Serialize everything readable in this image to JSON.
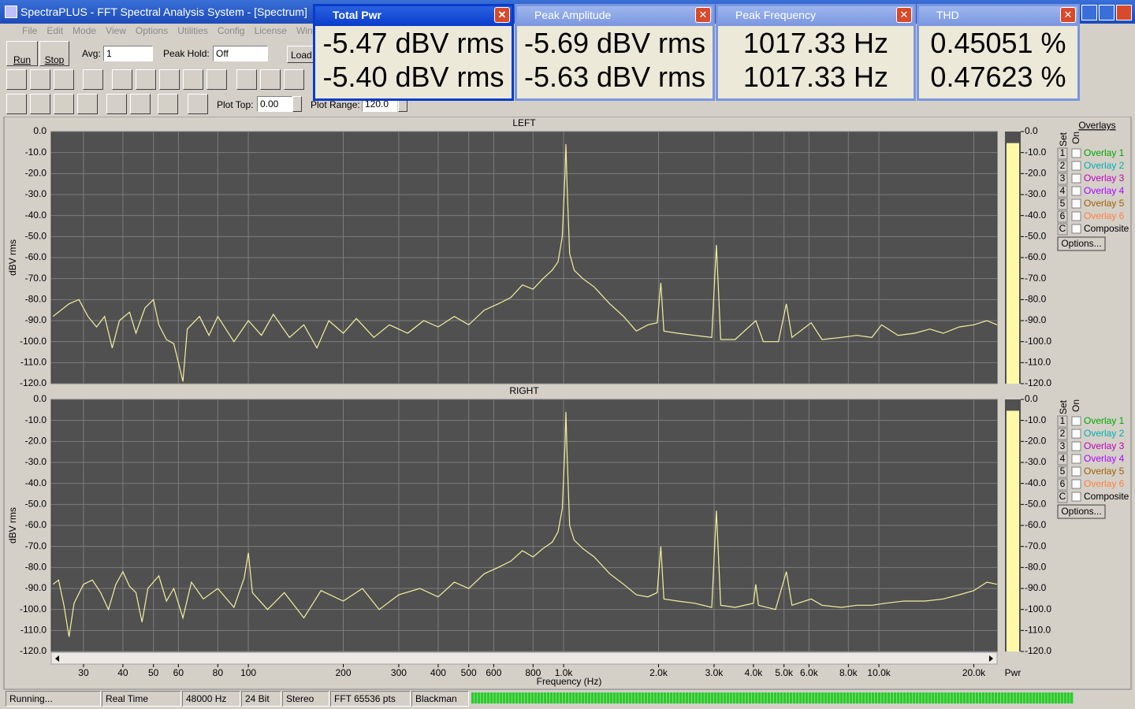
{
  "window_title": "SpectraPLUS - FFT Spectral Analysis System - [Spectrum]",
  "menu": [
    "File",
    "Edit",
    "Mode",
    "View",
    "Options",
    "Utilities",
    "Config",
    "License",
    "Window"
  ],
  "toolbar": {
    "run": "Run",
    "stop": "Stop",
    "avg_label": "Avg:",
    "avg_value": "1",
    "peak_hold_label": "Peak Hold:",
    "peak_hold_value": "Off",
    "load": "Load",
    "plot_top_label": "Plot Top:",
    "plot_top_value": "0.00",
    "plot_range_label": "Plot Range:",
    "plot_range_value": "120.0"
  },
  "meters": [
    {
      "title": "Total Pwr",
      "lines": [
        "-5.47 dBV rms",
        "-5.40 dBV rms"
      ]
    },
    {
      "title": "Peak Amplitude",
      "lines": [
        "-5.69 dBV rms",
        "-5.63 dBV rms"
      ]
    },
    {
      "title": "Peak Frequency",
      "lines": [
        "1017.33 Hz",
        "1017.33 Hz"
      ]
    },
    {
      "title": "THD",
      "lines": [
        "0.45051 %",
        "0.47623 %"
      ]
    }
  ],
  "overlays": {
    "title": "Overlays",
    "set_label": "Set",
    "on_label": "On",
    "items": [
      {
        "set": "1",
        "name": "Overlay 1",
        "color": "#00a800"
      },
      {
        "set": "2",
        "name": "Overlay 2",
        "color": "#00b0b0"
      },
      {
        "set": "3",
        "name": "Overlay 3",
        "color": "#c000c0"
      },
      {
        "set": "4",
        "name": "Overlay 4",
        "color": "#b000ff"
      },
      {
        "set": "5",
        "name": "Overlay 5",
        "color": "#a06000"
      },
      {
        "set": "6",
        "name": "Overlay 6",
        "color": "#ff7f40"
      }
    ],
    "composite_set": "C",
    "composite": "Composite",
    "options": "Options..."
  },
  "power_label": "Pwr",
  "status": [
    "Running...",
    "Real Time",
    "48000 Hz",
    "24 Bit",
    "Stereo",
    "FFT 65536 pts",
    "Blackman"
  ],
  "chart_data": [
    {
      "type": "line",
      "title": "LEFT",
      "y_label": "dBV rms",
      "color": "#f4f0a0",
      "log_x": true,
      "grid": true,
      "power": -5.5,
      "xlim": [
        23.7,
        23700
      ],
      "ylim": [
        -120,
        0
      ],
      "yticks": [
        {
          "value": 0,
          "label": "0.0"
        },
        {
          "value": -10,
          "label": "-10.0"
        },
        {
          "value": -20,
          "label": "-20.0"
        },
        {
          "value": -30,
          "label": "-30.0"
        },
        {
          "value": -40,
          "label": "-40.0"
        },
        {
          "value": -50,
          "label": "-50.0"
        },
        {
          "value": -60,
          "label": "-60.0"
        },
        {
          "value": -70,
          "label": "-70.0"
        },
        {
          "value": -80,
          "label": "-80.0"
        },
        {
          "value": -90,
          "label": "-90.0"
        },
        {
          "value": -100,
          "label": "-100.0"
        },
        {
          "value": -110,
          "label": "-110.0"
        },
        {
          "value": -120,
          "label": "-120.0"
        }
      ],
      "x": [
        24,
        27,
        29,
        31,
        33,
        35,
        37,
        39,
        42,
        44,
        47,
        50,
        52,
        55,
        58,
        60,
        62,
        64,
        70,
        75,
        80,
        90,
        100,
        110,
        120,
        135,
        150,
        165,
        180,
        200,
        220,
        250,
        280,
        320,
        360,
        400,
        450,
        500,
        560,
        620,
        680,
        740,
        800,
        860,
        920,
        960,
        990,
        1010,
        1017,
        1025,
        1045,
        1080,
        1150,
        1250,
        1400,
        1550,
        1700,
        1850,
        1980,
        2034,
        2080,
        2300,
        2600,
        2950,
        3052,
        3150,
        3500,
        4069,
        4300,
        4800,
        5086,
        5300,
        6100,
        6600,
        7600,
        8500,
        9500,
        10200,
        11500,
        13000,
        14500,
        16000,
        18000,
        20000,
        22000,
        23700
      ],
      "values": [
        -88,
        -82,
        -80,
        -88,
        -93,
        -88,
        -103,
        -90,
        -86,
        -96,
        -84,
        -80,
        -92,
        -99,
        -101,
        -110,
        -119,
        -94,
        -88,
        -97,
        -88,
        -100,
        -90,
        -97,
        -87,
        -98,
        -92,
        -103,
        -90,
        -96,
        -89,
        -98,
        -92,
        -96,
        -90,
        -93,
        -88,
        -92,
        -85,
        -82,
        -79,
        -73,
        -75,
        -70,
        -66,
        -62,
        -50,
        -20,
        -6,
        -25,
        -58,
        -66,
        -70,
        -74,
        -82,
        -88,
        -95,
        -92,
        -91,
        -72,
        -95,
        -96,
        -97,
        -98,
        -54,
        -99,
        -99,
        -90,
        -100,
        -100,
        -82,
        -98,
        -91,
        -99,
        -98,
        -97,
        -98,
        -92,
        -97,
        -96,
        -94,
        -96,
        -93,
        -92,
        -90,
        -92
      ]
    },
    {
      "type": "line",
      "title": "RIGHT",
      "y_label": "dBV rms",
      "color": "#f4f0a0",
      "log_x": true,
      "grid": true,
      "power": -5.4,
      "x_label": "Frequency (Hz)",
      "xlim": [
        23.7,
        23700
      ],
      "ylim": [
        -120,
        0
      ],
      "xticks": [
        30,
        40,
        50,
        60,
        80,
        100,
        200,
        300,
        400,
        500,
        600,
        800,
        {
          "value": 1000,
          "label": "1.0k"
        },
        {
          "value": 2000,
          "label": "2.0k"
        },
        {
          "value": 3000,
          "label": "3.0k"
        },
        {
          "value": 4000,
          "label": "4.0k"
        },
        {
          "value": 5000,
          "label": "5.0k"
        },
        {
          "value": 6000,
          "label": "6.0k"
        },
        {
          "value": 8000,
          "label": "8.0k"
        },
        {
          "value": 10000,
          "label": "10.0k"
        },
        {
          "value": 20000,
          "label": "20.0k"
        }
      ],
      "yticks": [
        {
          "value": 0,
          "label": "0.0"
        },
        {
          "value": -10,
          "label": "-10.0"
        },
        {
          "value": -20,
          "label": "-20.0"
        },
        {
          "value": -30,
          "label": "-30.0"
        },
        {
          "value": -40,
          "label": "-40.0"
        },
        {
          "value": -50,
          "label": "-50.0"
        },
        {
          "value": -60,
          "label": "-60.0"
        },
        {
          "value": -70,
          "label": "-70.0"
        },
        {
          "value": -80,
          "label": "-80.0"
        },
        {
          "value": -90,
          "label": "-90.0"
        },
        {
          "value": -100,
          "label": "-100.0"
        },
        {
          "value": -110,
          "label": "-110.0"
        },
        {
          "value": -120,
          "label": "-120.0"
        }
      ],
      "x": [
        24,
        25,
        26,
        27,
        28,
        30,
        32,
        34,
        36,
        38,
        40,
        42,
        44,
        46,
        48,
        52,
        55,
        58,
        62,
        66,
        72,
        80,
        90,
        97,
        100,
        103,
        115,
        130,
        150,
        170,
        200,
        230,
        260,
        300,
        350,
        400,
        450,
        500,
        560,
        620,
        680,
        740,
        800,
        860,
        920,
        960,
        990,
        1010,
        1017,
        1025,
        1045,
        1080,
        1150,
        1250,
        1400,
        1550,
        1700,
        1850,
        1980,
        2034,
        2080,
        2300,
        2600,
        2950,
        3052,
        3150,
        3500,
        4000,
        4069,
        4150,
        4700,
        5086,
        5300,
        6100,
        6600,
        7600,
        8500,
        9500,
        10500,
        12000,
        14000,
        16000,
        18000,
        20000,
        22000,
        23700
      ],
      "values": [
        -88,
        -86,
        -98,
        -113,
        -97,
        -88,
        -86,
        -92,
        -100,
        -88,
        -82,
        -89,
        -92,
        -106,
        -90,
        -84,
        -96,
        -90,
        -104,
        -87,
        -95,
        -90,
        -99,
        -85,
        -73,
        -92,
        -100,
        -92,
        -104,
        -91,
        -96,
        -90,
        -100,
        -93,
        -90,
        -94,
        -87,
        -90,
        -83,
        -80,
        -77,
        -72,
        -75,
        -71,
        -68,
        -63,
        -52,
        -22,
        -6,
        -25,
        -60,
        -67,
        -71,
        -75,
        -83,
        -88,
        -93,
        -94,
        -92,
        -70,
        -95,
        -96,
        -97,
        -99,
        -53,
        -98,
        -99,
        -97,
        -88,
        -98,
        -100,
        -82,
        -98,
        -95,
        -98,
        -99,
        -98,
        -98,
        -97,
        -96,
        -96,
        -95,
        -93,
        -91,
        -87,
        -88
      ]
    }
  ]
}
